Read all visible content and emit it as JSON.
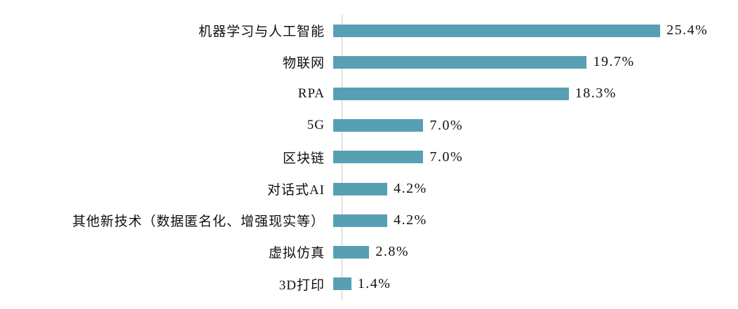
{
  "chart_data": {
    "type": "bar",
    "orientation": "horizontal",
    "title": "",
    "xlabel": "",
    "ylabel": "",
    "grid": false,
    "legend": false,
    "xlim": [
      0,
      28
    ],
    "bar_color": "#57A0B4",
    "axis_line_color": "#C9C9C9",
    "categories": [
      "机器学习与人工智能",
      "物联网",
      "RPA",
      "5G",
      "区块链",
      "对话式AI",
      "其他新技术（数据匿名化、增强现实等）",
      "虚拟仿真",
      "3D打印"
    ],
    "values": [
      25.4,
      19.7,
      18.3,
      7.0,
      7.0,
      4.2,
      4.2,
      2.8,
      1.4
    ],
    "value_labels": [
      "25.4%",
      "19.7%",
      "18.3%",
      "7.0%",
      "7.0%",
      "4.2%",
      "4.2%",
      "2.8%",
      "1.4%"
    ]
  }
}
